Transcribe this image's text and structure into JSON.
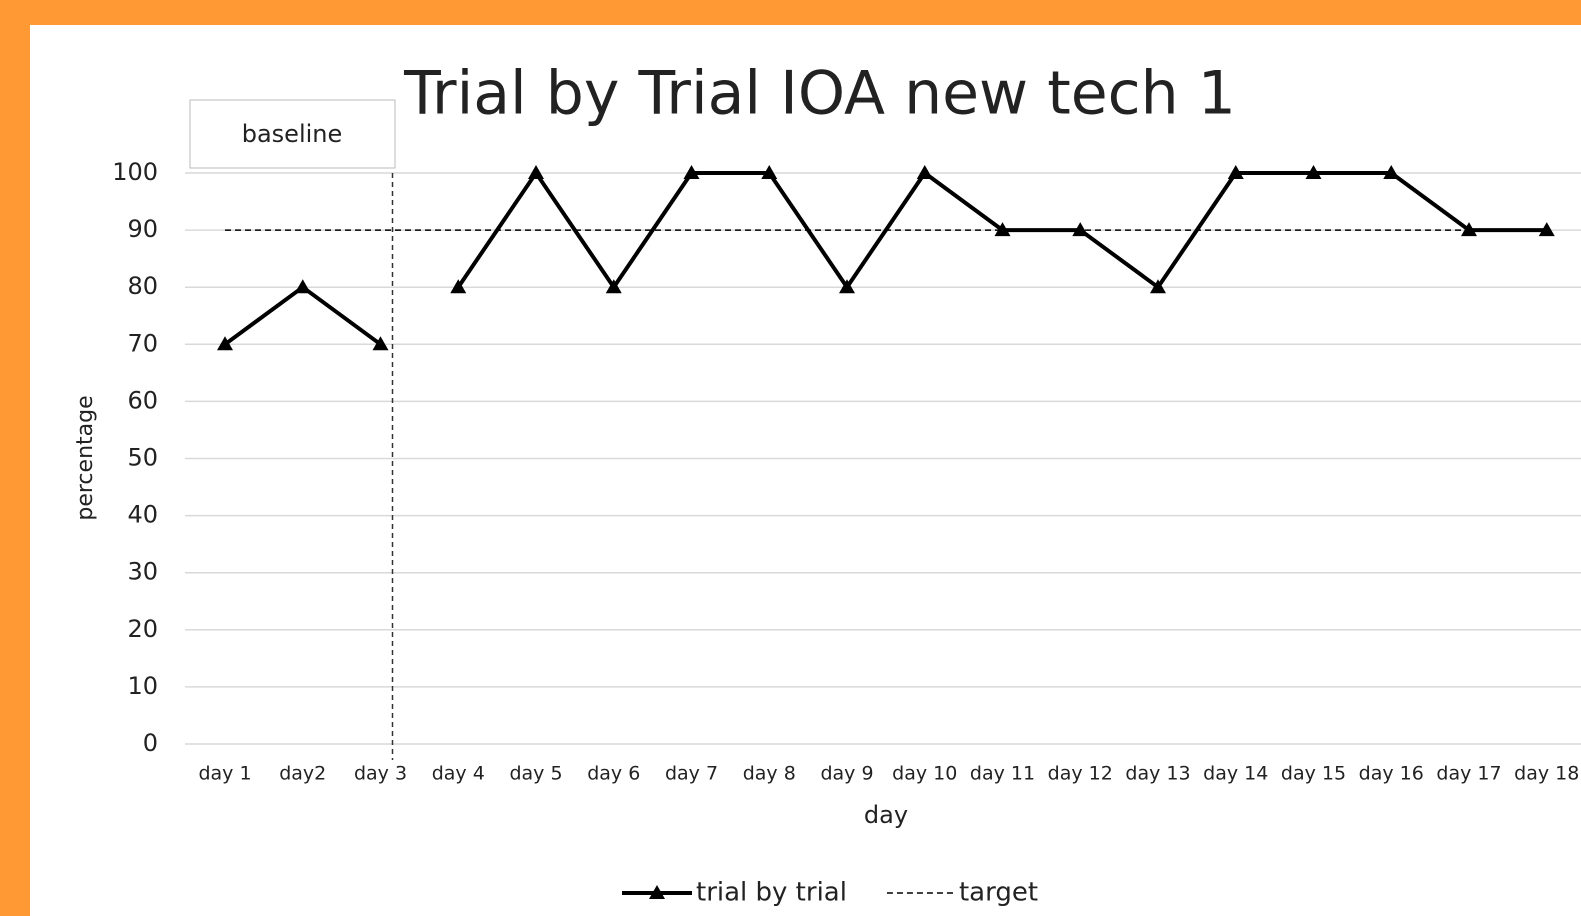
{
  "chart_data": {
    "type": "line",
    "title": "Trial by Trial IOA new tech 1",
    "annotation": "baseline",
    "phase_line_after": "day 3",
    "x_label": "day",
    "y_label": "percentage",
    "categories": [
      "day 1",
      "day2",
      "day 3",
      "day 4",
      "day 5",
      "day 6",
      "day 7",
      "day 8",
      "day 9",
      "day 10",
      "day 11",
      "day 12",
      "day 13",
      "day 14",
      "day 15",
      "day 16",
      "day 17",
      "day 18"
    ],
    "series": [
      {
        "name": "trial by trial",
        "color": "#000000",
        "style": "solid",
        "marker": "triangle",
        "values": [
          70,
          80,
          70,
          80,
          100,
          80,
          100,
          100,
          80,
          100,
          90,
          90,
          80,
          100,
          100,
          100,
          90,
          90
        ]
      },
      {
        "name": "target",
        "color": "#000000",
        "style": "dashed",
        "values": [
          90,
          90,
          90,
          90,
          90,
          90,
          90,
          90,
          90,
          90,
          90,
          90,
          90,
          90,
          90,
          90,
          90,
          90
        ]
      }
    ],
    "ylim": [
      0,
      100
    ],
    "yticks": [
      0,
      10,
      20,
      30,
      40,
      50,
      60,
      70,
      80,
      90,
      100
    ],
    "grid": true,
    "legend": "bottom"
  }
}
